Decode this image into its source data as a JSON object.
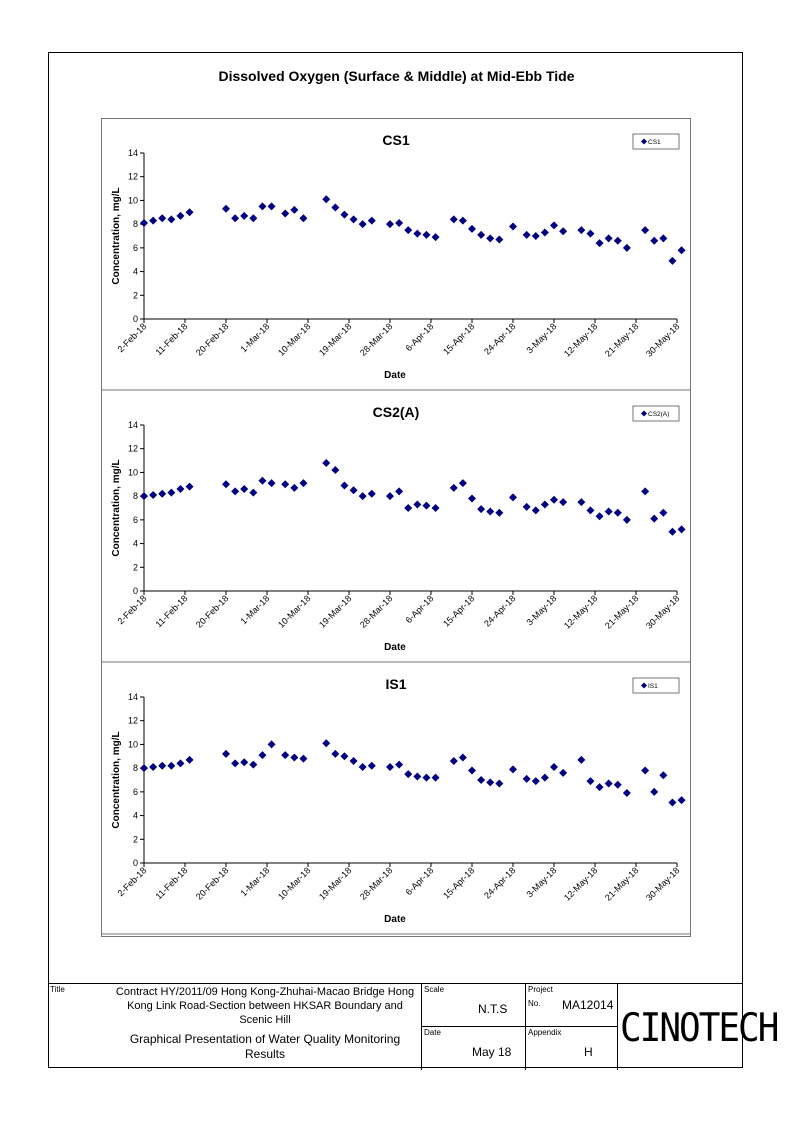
{
  "page_title": "Dissolved Oxygen (Surface & Middle) at Mid-Ebb Tide",
  "chart_data": [
    {
      "type": "scatter",
      "title": "CS1",
      "xlabel": "Date",
      "ylabel": "Concentration, mg/L",
      "ylim": [
        0,
        14
      ],
      "yticks": [
        "0",
        "2",
        "4",
        "6",
        "8",
        "10",
        "12",
        "14"
      ],
      "xticks": [
        "2-Feb-18",
        "11-Feb-18",
        "20-Feb-18",
        "1-Mar-18",
        "10-Mar-18",
        "19-Mar-18",
        "28-Mar-18",
        "6-Apr-18",
        "15-Apr-18",
        "24-Apr-18",
        "3-May-18",
        "12-May-18",
        "21-May-18",
        "30-May-18"
      ],
      "legend": "top-right",
      "series": [
        {
          "name": "CS1",
          "color": "#000080",
          "points": [
            [
              "2018-02-02",
              8.1
            ],
            [
              "2018-02-04",
              8.3
            ],
            [
              "2018-02-06",
              8.5
            ],
            [
              "2018-02-08",
              8.4
            ],
            [
              "2018-02-10",
              8.7
            ],
            [
              "2018-02-12",
              9.0
            ],
            [
              "2018-02-20",
              9.3
            ],
            [
              "2018-02-22",
              8.5
            ],
            [
              "2018-02-24",
              8.7
            ],
            [
              "2018-02-26",
              8.5
            ],
            [
              "2018-02-28",
              9.5
            ],
            [
              "2018-03-02",
              9.5
            ],
            [
              "2018-03-05",
              8.9
            ],
            [
              "2018-03-07",
              9.2
            ],
            [
              "2018-03-09",
              8.5
            ],
            [
              "2018-03-14",
              10.1
            ],
            [
              "2018-03-16",
              9.4
            ],
            [
              "2018-03-18",
              8.8
            ],
            [
              "2018-03-20",
              8.4
            ],
            [
              "2018-03-22",
              8.0
            ],
            [
              "2018-03-24",
              8.3
            ],
            [
              "2018-03-28",
              8.0
            ],
            [
              "2018-03-30",
              8.1
            ],
            [
              "2018-04-01",
              7.5
            ],
            [
              "2018-04-03",
              7.2
            ],
            [
              "2018-04-05",
              7.1
            ],
            [
              "2018-04-07",
              6.9
            ],
            [
              "2018-04-11",
              8.4
            ],
            [
              "2018-04-13",
              8.3
            ],
            [
              "2018-04-15",
              7.6
            ],
            [
              "2018-04-17",
              7.1
            ],
            [
              "2018-04-19",
              6.8
            ],
            [
              "2018-04-21",
              6.7
            ],
            [
              "2018-04-24",
              7.8
            ],
            [
              "2018-04-27",
              7.1
            ],
            [
              "2018-04-29",
              7.0
            ],
            [
              "2018-05-01",
              7.3
            ],
            [
              "2018-05-03",
              7.9
            ],
            [
              "2018-05-05",
              7.4
            ],
            [
              "2018-05-09",
              7.5
            ],
            [
              "2018-05-11",
              7.2
            ],
            [
              "2018-05-13",
              6.4
            ],
            [
              "2018-05-15",
              6.8
            ],
            [
              "2018-05-17",
              6.6
            ],
            [
              "2018-05-19",
              6.0
            ],
            [
              "2018-05-23",
              7.5
            ],
            [
              "2018-05-25",
              6.6
            ],
            [
              "2018-05-27",
              6.8
            ],
            [
              "2018-05-29",
              4.9
            ],
            [
              "2018-05-31",
              5.8
            ]
          ]
        }
      ]
    },
    {
      "type": "scatter",
      "title": "CS2(A)",
      "xlabel": "Date",
      "ylabel": "Concentration, mg/L",
      "ylim": [
        0,
        14
      ],
      "yticks": [
        "0",
        "2",
        "4",
        "6",
        "8",
        "10",
        "12",
        "14"
      ],
      "xticks": [
        "2-Feb-18",
        "11-Feb-18",
        "20-Feb-18",
        "1-Mar-18",
        "10-Mar-18",
        "19-Mar-18",
        "28-Mar-18",
        "6-Apr-18",
        "15-Apr-18",
        "24-Apr-18",
        "3-May-18",
        "12-May-18",
        "21-May-18",
        "30-May-18"
      ],
      "legend": "top-right",
      "series": [
        {
          "name": "CS2(A)",
          "color": "#000080",
          "points": [
            [
              "2018-02-02",
              8.0
            ],
            [
              "2018-02-04",
              8.1
            ],
            [
              "2018-02-06",
              8.2
            ],
            [
              "2018-02-08",
              8.3
            ],
            [
              "2018-02-10",
              8.6
            ],
            [
              "2018-02-12",
              8.8
            ],
            [
              "2018-02-20",
              9.0
            ],
            [
              "2018-02-22",
              8.4
            ],
            [
              "2018-02-24",
              8.6
            ],
            [
              "2018-02-26",
              8.3
            ],
            [
              "2018-02-28",
              9.3
            ],
            [
              "2018-03-02",
              9.1
            ],
            [
              "2018-03-05",
              9.0
            ],
            [
              "2018-03-07",
              8.7
            ],
            [
              "2018-03-09",
              9.1
            ],
            [
              "2018-03-14",
              10.8
            ],
            [
              "2018-03-16",
              10.2
            ],
            [
              "2018-03-18",
              8.9
            ],
            [
              "2018-03-20",
              8.5
            ],
            [
              "2018-03-22",
              8.0
            ],
            [
              "2018-03-24",
              8.2
            ],
            [
              "2018-03-28",
              8.0
            ],
            [
              "2018-03-30",
              8.4
            ],
            [
              "2018-04-01",
              7.0
            ],
            [
              "2018-04-03",
              7.3
            ],
            [
              "2018-04-05",
              7.2
            ],
            [
              "2018-04-07",
              7.0
            ],
            [
              "2018-04-11",
              8.7
            ],
            [
              "2018-04-13",
              9.1
            ],
            [
              "2018-04-15",
              7.8
            ],
            [
              "2018-04-17",
              6.9
            ],
            [
              "2018-04-19",
              6.7
            ],
            [
              "2018-04-21",
              6.6
            ],
            [
              "2018-04-24",
              7.9
            ],
            [
              "2018-04-27",
              7.1
            ],
            [
              "2018-04-29",
              6.8
            ],
            [
              "2018-05-01",
              7.3
            ],
            [
              "2018-05-03",
              7.7
            ],
            [
              "2018-05-05",
              7.5
            ],
            [
              "2018-05-09",
              7.5
            ],
            [
              "2018-05-11",
              6.8
            ],
            [
              "2018-05-13",
              6.3
            ],
            [
              "2018-05-15",
              6.7
            ],
            [
              "2018-05-17",
              6.6
            ],
            [
              "2018-05-19",
              6.0
            ],
            [
              "2018-05-23",
              8.4
            ],
            [
              "2018-05-25",
              6.1
            ],
            [
              "2018-05-27",
              6.6
            ],
            [
              "2018-05-29",
              5.0
            ],
            [
              "2018-05-31",
              5.2
            ]
          ]
        }
      ]
    },
    {
      "type": "scatter",
      "title": "IS1",
      "xlabel": "Date",
      "ylabel": "Concentration, mg/L",
      "ylim": [
        0,
        14
      ],
      "yticks": [
        "0",
        "2",
        "4",
        "6",
        "8",
        "10",
        "12",
        "14"
      ],
      "xticks": [
        "2-Feb-18",
        "11-Feb-18",
        "20-Feb-18",
        "1-Mar-18",
        "10-Mar-18",
        "19-Mar-18",
        "28-Mar-18",
        "6-Apr-18",
        "15-Apr-18",
        "24-Apr-18",
        "3-May-18",
        "12-May-18",
        "21-May-18",
        "30-May-18"
      ],
      "legend": "top-right",
      "series": [
        {
          "name": "IS1",
          "color": "#000080",
          "points": [
            [
              "2018-02-02",
              8.0
            ],
            [
              "2018-02-04",
              8.1
            ],
            [
              "2018-02-06",
              8.2
            ],
            [
              "2018-02-08",
              8.2
            ],
            [
              "2018-02-10",
              8.4
            ],
            [
              "2018-02-12",
              8.7
            ],
            [
              "2018-02-20",
              9.2
            ],
            [
              "2018-02-22",
              8.4
            ],
            [
              "2018-02-24",
              8.5
            ],
            [
              "2018-02-26",
              8.3
            ],
            [
              "2018-02-28",
              9.1
            ],
            [
              "2018-03-02",
              10.0
            ],
            [
              "2018-03-05",
              9.1
            ],
            [
              "2018-03-07",
              8.9
            ],
            [
              "2018-03-09",
              8.8
            ],
            [
              "2018-03-14",
              10.1
            ],
            [
              "2018-03-16",
              9.2
            ],
            [
              "2018-03-18",
              9.0
            ],
            [
              "2018-03-20",
              8.6
            ],
            [
              "2018-03-22",
              8.1
            ],
            [
              "2018-03-24",
              8.2
            ],
            [
              "2018-03-28",
              8.1
            ],
            [
              "2018-03-30",
              8.3
            ],
            [
              "2018-04-01",
              7.5
            ],
            [
              "2018-04-03",
              7.3
            ],
            [
              "2018-04-05",
              7.2
            ],
            [
              "2018-04-07",
              7.2
            ],
            [
              "2018-04-11",
              8.6
            ],
            [
              "2018-04-13",
              8.9
            ],
            [
              "2018-04-15",
              7.8
            ],
            [
              "2018-04-17",
              7.0
            ],
            [
              "2018-04-19",
              6.8
            ],
            [
              "2018-04-21",
              6.7
            ],
            [
              "2018-04-24",
              7.9
            ],
            [
              "2018-04-27",
              7.1
            ],
            [
              "2018-04-29",
              6.9
            ],
            [
              "2018-05-01",
              7.2
            ],
            [
              "2018-05-03",
              8.1
            ],
            [
              "2018-05-05",
              7.6
            ],
            [
              "2018-05-09",
              8.7
            ],
            [
              "2018-05-11",
              6.9
            ],
            [
              "2018-05-13",
              6.4
            ],
            [
              "2018-05-15",
              6.7
            ],
            [
              "2018-05-17",
              6.6
            ],
            [
              "2018-05-19",
              5.9
            ],
            [
              "2018-05-23",
              7.8
            ],
            [
              "2018-05-25",
              6.0
            ],
            [
              "2018-05-27",
              7.4
            ],
            [
              "2018-05-29",
              5.1
            ],
            [
              "2018-05-31",
              5.3
            ]
          ]
        }
      ]
    }
  ],
  "title_block": {
    "title_label": "Title",
    "title_text": "Contract HY/2011/09 Hong Kong-Zhuhai-Macao Bridge Hong Kong Link Road-Section between HKSAR Boundary and Scenic Hill",
    "description": "Graphical Presentation of Water Quality Monitoring Results",
    "scale_label": "Scale",
    "scale_value": "N.T.S",
    "date_label": "Date",
    "date_value": "May 18",
    "project_label": "Project",
    "project_no_label": "No.",
    "project_value": "MA12014",
    "appendix_label": "Appendix",
    "appendix_value": "H",
    "logo_text": "CINOTECH"
  }
}
